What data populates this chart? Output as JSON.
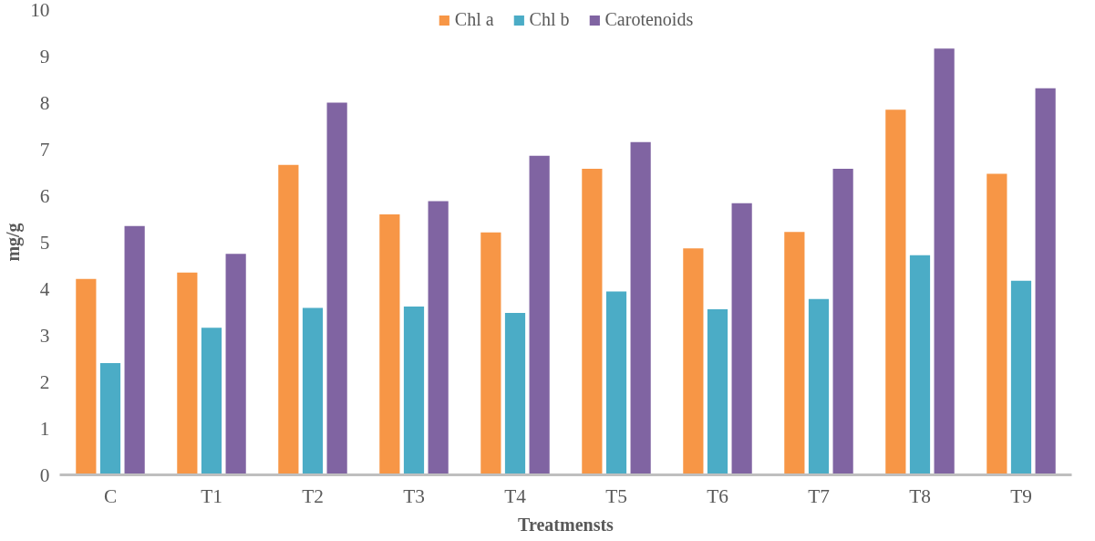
{
  "chart_data": {
    "type": "bar",
    "xlabel": "Treatmensts",
    "ylabel": "mg/g",
    "categories": [
      "C",
      "T1",
      "T2",
      "T3",
      "T4",
      "T5",
      "T6",
      "T7",
      "T8",
      "T9"
    ],
    "series": [
      {
        "name": "Chl a",
        "color": "#f79646",
        "values": [
          4.21,
          4.35,
          6.66,
          5.6,
          5.21,
          6.58,
          4.87,
          5.22,
          7.85,
          6.47
        ]
      },
      {
        "name": "Chl b",
        "color": "#4bacc6",
        "values": [
          2.4,
          3.16,
          3.59,
          3.62,
          3.48,
          3.94,
          3.56,
          3.78,
          4.72,
          4.17
        ]
      },
      {
        "name": "Carotenoids",
        "color": "#8064a2",
        "values": [
          5.35,
          4.75,
          8.0,
          5.88,
          6.86,
          7.15,
          5.84,
          6.58,
          9.16,
          8.31
        ]
      }
    ],
    "ylim": [
      0,
      10
    ],
    "yticks": [
      0,
      1,
      2,
      3,
      4,
      5,
      6,
      7,
      8,
      9,
      10
    ],
    "grid": false,
    "legend": "top"
  }
}
